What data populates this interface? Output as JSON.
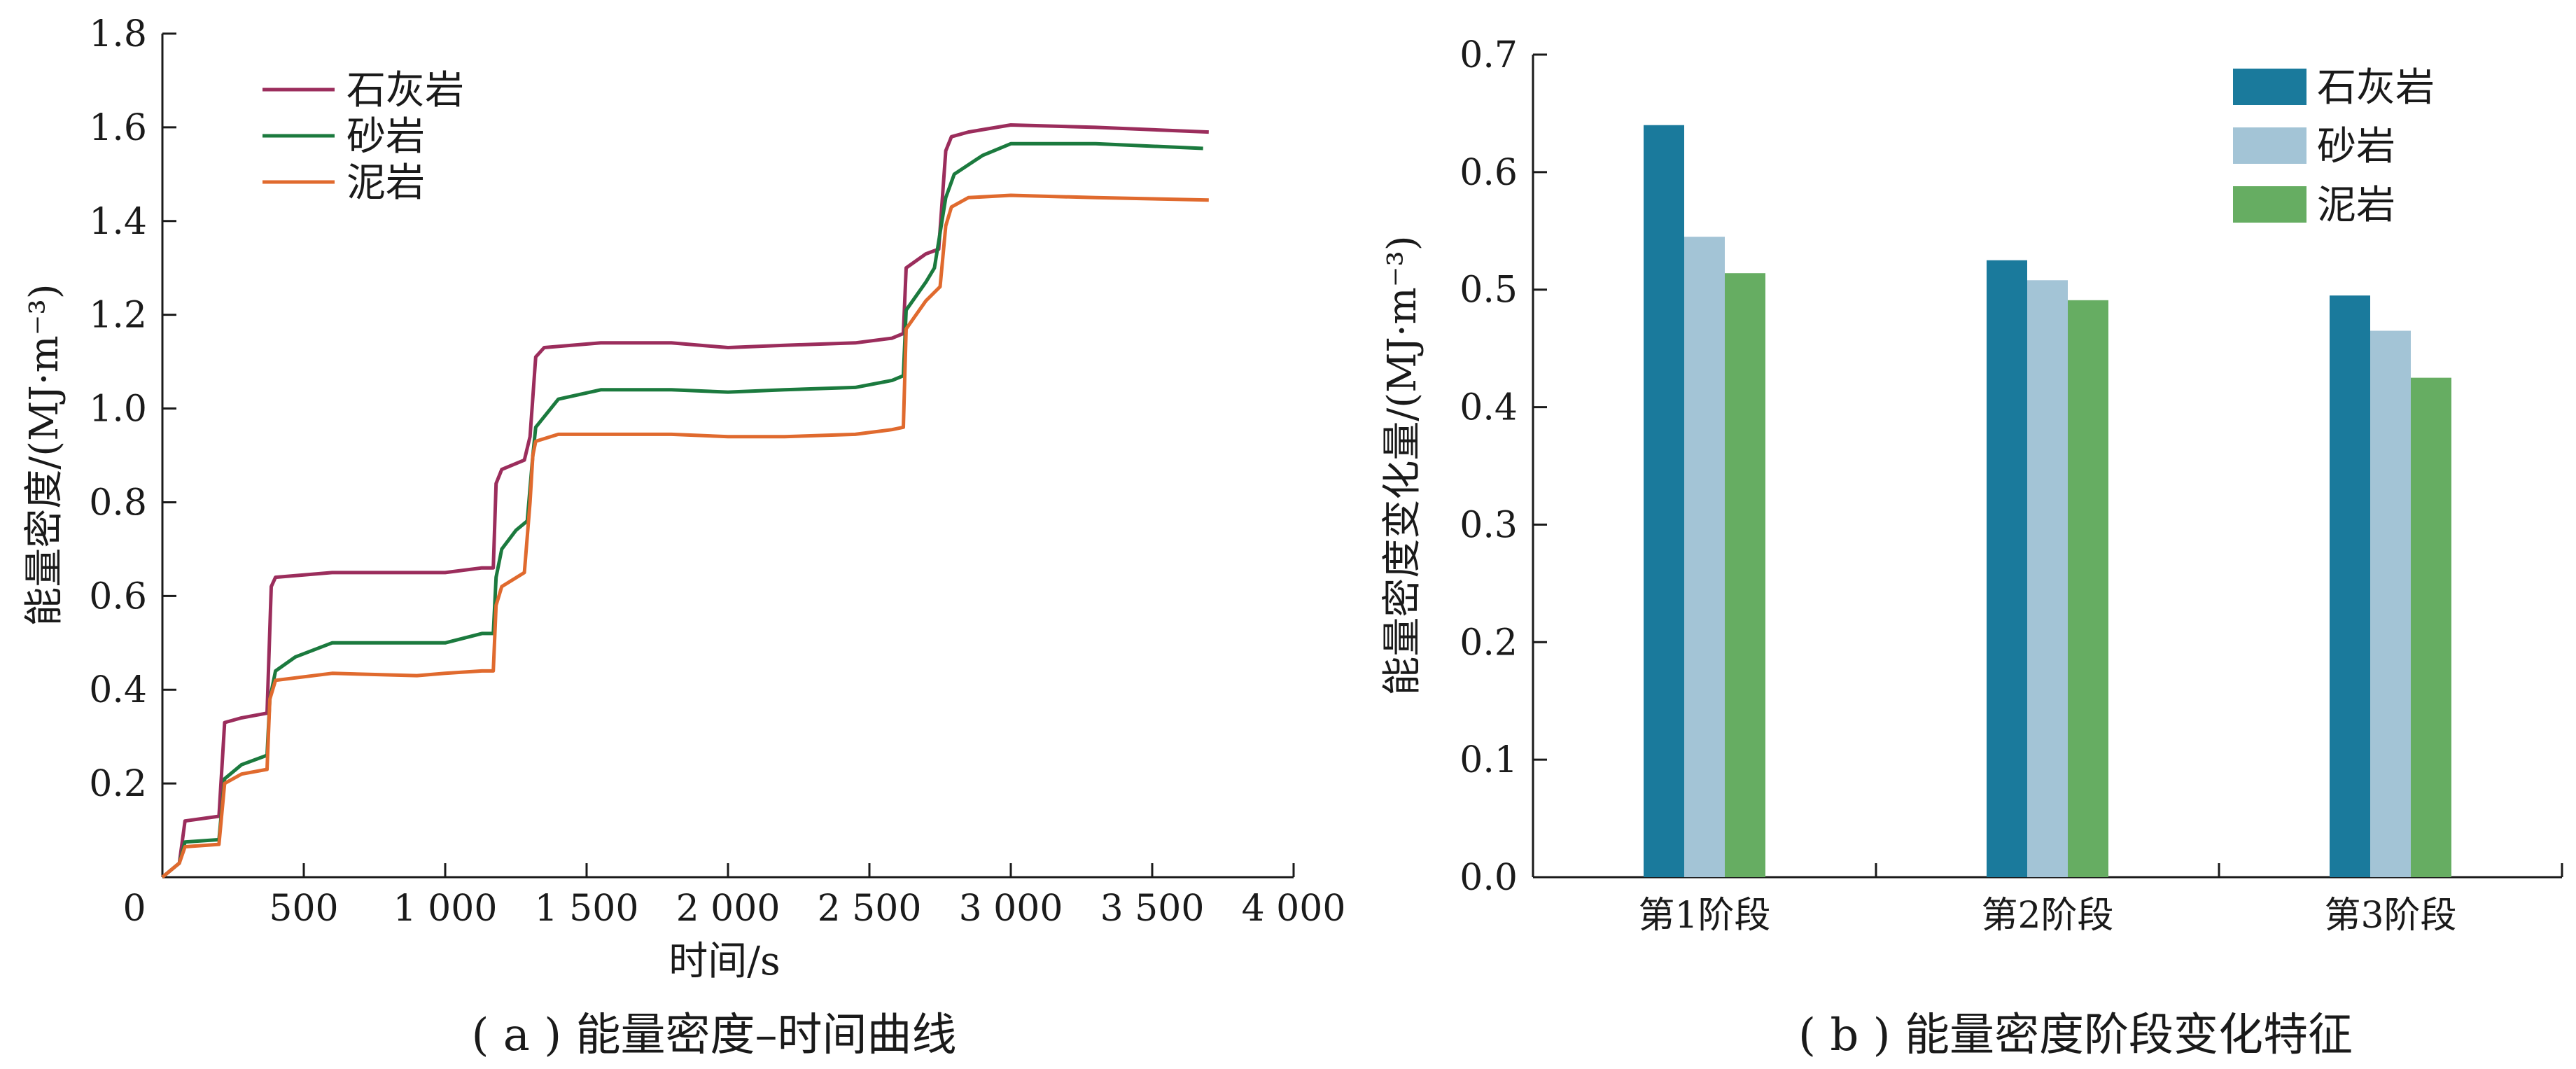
{
  "chart_data": [
    {
      "type": "line",
      "caption": "( a ) 能量密度–时间曲线",
      "xlabel": "时间/s",
      "ylabel": "能量密度/(MJ·m⁻³)",
      "xlim": [
        0,
        4000
      ],
      "ylim": [
        0,
        1.8
      ],
      "xticks": [
        0,
        500,
        1000,
        1500,
        2000,
        2500,
        3000,
        3500,
        4000
      ],
      "xtick_labels": [
        "0",
        "500",
        "1 000",
        "1 500",
        "2 000",
        "2 500",
        "3 000",
        "3 500",
        "4 000"
      ],
      "yticks": [
        0.2,
        0.4,
        0.6,
        0.8,
        1.0,
        1.2,
        1.4,
        1.6,
        1.8
      ],
      "ytick_labels": [
        "0.2",
        "0.4",
        "0.6",
        "0.8",
        "1.0",
        "1.2",
        "1.4",
        "1.6",
        "1.8"
      ],
      "legend_position": "top-left",
      "series": [
        {
          "name": "石灰岩",
          "color": "#9b2d5c",
          "x": [
            0,
            60,
            80,
            200,
            220,
            280,
            370,
            385,
            400,
            600,
            900,
            1000,
            1130,
            1170,
            1180,
            1200,
            1280,
            1300,
            1320,
            1350,
            1550,
            1800,
            2000,
            2200,
            2450,
            2580,
            2620,
            2630,
            2700,
            2745,
            2770,
            2790,
            2850,
            3000,
            3300,
            3700
          ],
          "y": [
            0,
            0.03,
            0.12,
            0.13,
            0.33,
            0.34,
            0.35,
            0.62,
            0.64,
            0.65,
            0.65,
            0.65,
            0.66,
            0.66,
            0.84,
            0.87,
            0.89,
            0.94,
            1.11,
            1.13,
            1.14,
            1.14,
            1.13,
            1.135,
            1.14,
            1.15,
            1.16,
            1.3,
            1.33,
            1.34,
            1.55,
            1.58,
            1.59,
            1.605,
            1.6,
            1.59
          ]
        },
        {
          "name": "砂岩",
          "color": "#1b7a3e",
          "x": [
            0,
            60,
            80,
            200,
            220,
            280,
            370,
            380,
            400,
            470,
            600,
            900,
            1000,
            1130,
            1170,
            1180,
            1200,
            1250,
            1290,
            1310,
            1320,
            1400,
            1550,
            1800,
            2000,
            2200,
            2450,
            2580,
            2620,
            2630,
            2700,
            2730,
            2770,
            2800,
            2900,
            3000,
            3300,
            3680
          ],
          "y": [
            0,
            0.03,
            0.075,
            0.08,
            0.21,
            0.24,
            0.26,
            0.38,
            0.44,
            0.47,
            0.5,
            0.5,
            0.5,
            0.52,
            0.52,
            0.64,
            0.7,
            0.74,
            0.76,
            0.9,
            0.96,
            1.02,
            1.04,
            1.04,
            1.035,
            1.04,
            1.045,
            1.06,
            1.07,
            1.21,
            1.27,
            1.3,
            1.45,
            1.5,
            1.54,
            1.565,
            1.565,
            1.555
          ]
        },
        {
          "name": "泥岩",
          "color": "#e06a2e",
          "x": [
            0,
            60,
            80,
            200,
            220,
            280,
            370,
            380,
            400,
            600,
            900,
            1000,
            1130,
            1170,
            1180,
            1200,
            1280,
            1300,
            1310,
            1320,
            1400,
            1550,
            1800,
            2000,
            2200,
            2450,
            2580,
            2620,
            2630,
            2700,
            2750,
            2770,
            2790,
            2850,
            3000,
            3300,
            3700
          ],
          "y": [
            0,
            0.03,
            0.065,
            0.07,
            0.2,
            0.22,
            0.23,
            0.38,
            0.42,
            0.435,
            0.43,
            0.435,
            0.44,
            0.44,
            0.58,
            0.62,
            0.65,
            0.8,
            0.9,
            0.93,
            0.945,
            0.945,
            0.945,
            0.94,
            0.94,
            0.945,
            0.955,
            0.96,
            1.17,
            1.23,
            1.26,
            1.39,
            1.43,
            1.45,
            1.455,
            1.45,
            1.445
          ]
        }
      ]
    },
    {
      "type": "bar",
      "caption": "( b ) 能量密度阶段变化特征",
      "xlabel": "",
      "ylabel": "能量密度变化量/(MJ·m⁻³)",
      "ylim": [
        0,
        0.7
      ],
      "yticks": [
        0.0,
        0.1,
        0.2,
        0.3,
        0.4,
        0.5,
        0.6,
        0.7
      ],
      "ytick_labels": [
        "0.0",
        "0.1",
        "0.2",
        "0.3",
        "0.4",
        "0.5",
        "0.6",
        "0.7"
      ],
      "categories": [
        "第1阶段",
        "第2阶段",
        "第3阶段"
      ],
      "legend_position": "top-right",
      "series": [
        {
          "name": "石灰岩",
          "color": "#1a7a9c",
          "values": [
            0.64,
            0.525,
            0.495
          ]
        },
        {
          "name": "砂岩",
          "color": "#a3c4d6",
          "values": [
            0.545,
            0.508,
            0.465
          ]
        },
        {
          "name": "泥岩",
          "color": "#66ad62",
          "values": [
            0.514,
            0.491,
            0.425
          ]
        }
      ]
    }
  ]
}
